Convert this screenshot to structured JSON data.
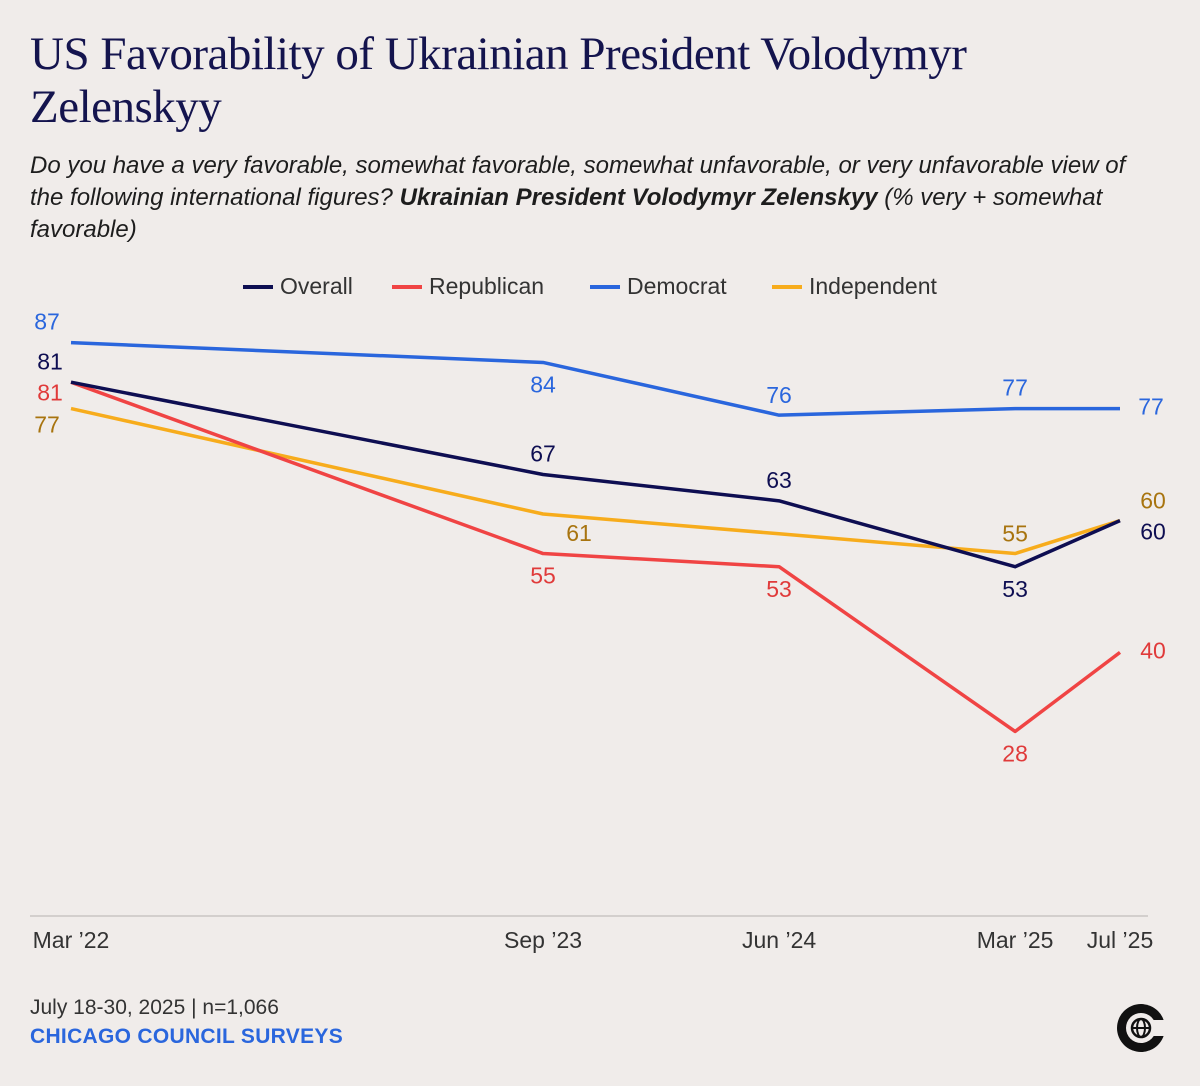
{
  "chart_data": {
    "type": "line",
    "title": "US Favorability of Ukrainian President Volodymyr Zelenskyy",
    "subtitle": "Do you have a very favorable, somewhat favorable, somewhat unfavorable, or very unfavorable view of the following international figures?",
    "subtitle_emphasis": "Ukrainian President Volodymyr Zelenskyy",
    "subtitle_note": "(% very + somewhat favorable)",
    "x": [
      "2022-03",
      "2023-09",
      "2024-06",
      "2025-03",
      "2025-07"
    ],
    "xticks": [
      {
        "value": "2022-03",
        "label": "Mar ’22"
      },
      {
        "value": "2023-09",
        "label": "Sep ’23"
      },
      {
        "value": "2024-06",
        "label": "Jun ’24"
      },
      {
        "value": "2025-03",
        "label": "Mar ’25"
      },
      {
        "value": "2025-07",
        "label": "Jul ’25"
      }
    ],
    "ylim": [
      0,
      100
    ],
    "series": [
      {
        "name": "Overall",
        "color": "#0e0e52",
        "values": [
          81,
          67,
          63,
          53,
          60
        ]
      },
      {
        "name": "Republican",
        "color": "#f04444",
        "values": [
          81,
          55,
          53,
          28,
          40
        ]
      },
      {
        "name": "Democrat",
        "color": "#2a66dd",
        "values": [
          87,
          84,
          76,
          77,
          77
        ]
      },
      {
        "name": "Independent",
        "color": "#f7ac1c",
        "values": [
          77,
          61,
          58,
          55,
          60
        ],
        "value_labels": [
          "77",
          "61",
          null,
          "55",
          "60"
        ]
      }
    ],
    "source": "July 18-30, 2025 | n=1,066",
    "organization": "CHICAGO COUNCIL SURVEYS"
  }
}
